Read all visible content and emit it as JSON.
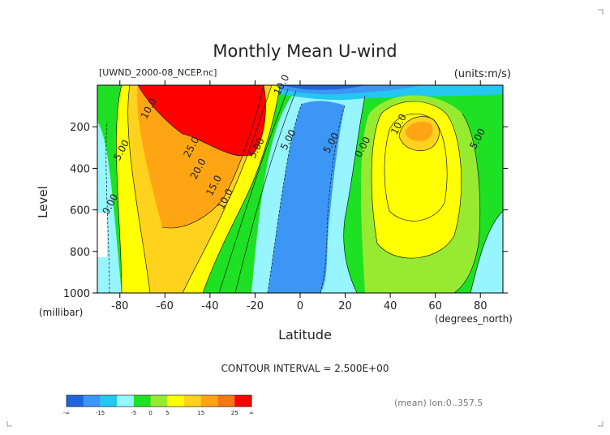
{
  "chart_data": {
    "type": "heatmap",
    "title": "Monthly Mean U-wind",
    "file_label": "[UWND_2000-08_NCEP.nc]",
    "units_label": "(units:m/s)",
    "xlabel": "Latitude",
    "xunit": "(degrees_north)",
    "ylabel": "Level",
    "yunit": "(millibar)",
    "xlim": [
      -90,
      90
    ],
    "ylim": [
      1000,
      0
    ],
    "xticks": [
      "-80",
      "-60",
      "-40",
      "-20",
      "0",
      "20",
      "40",
      "60",
      "80"
    ],
    "yticks": [
      "200",
      "400",
      "600",
      "800",
      "1000"
    ],
    "contour_interval_text": "CONTOUR INTERVAL = 2.500E+00",
    "mean_text": "(mean) lon:0..357.5",
    "contour_labels": [
      {
        "text": "10.0",
        "x": -66,
        "y": 120
      },
      {
        "text": "5.00",
        "x": -78,
        "y": 320
      },
      {
        "text": "25.0",
        "x": -47,
        "y": 305
      },
      {
        "text": "20.0",
        "x": -44,
        "y": 410
      },
      {
        "text": "15.0",
        "x": -37,
        "y": 490
      },
      {
        "text": "10.0",
        "x": -32,
        "y": 555
      },
      {
        "text": "5.00",
        "x": -18,
        "y": 310
      },
      {
        "text": "0.00",
        "x": -83,
        "y": 580
      },
      {
        "text": "10.0",
        "x": -7,
        "y": 5
      },
      {
        "text": "5.00",
        "x": -4,
        "y": 270
      },
      {
        "text": "5.00",
        "x": 15,
        "y": 285
      },
      {
        "text": "0.00",
        "x": 29,
        "y": 305
      },
      {
        "text": "10.0",
        "x": 45,
        "y": 195
      },
      {
        "text": "5.00",
        "x": 80,
        "y": 265
      }
    ],
    "colorbar": {
      "colors": [
        "#1e64dc",
        "#3c96f5",
        "#23c8f0",
        "#96f5ff",
        "#1ee123",
        "#96eb32",
        "#ffff00",
        "#ffd21e",
        "#ffa514",
        "#f57814",
        "#ff0000"
      ],
      "tick_labels": [
        "-∞",
        "-15",
        "-5",
        "0",
        "5",
        "15",
        "25",
        "∞"
      ]
    }
  }
}
